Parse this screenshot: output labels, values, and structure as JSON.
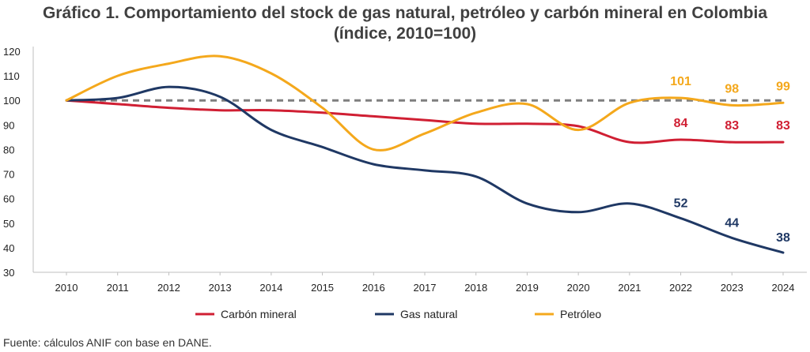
{
  "chart_data": {
    "type": "line",
    "title": "Gráfico 1. Comportamiento del stock de gas natural, petróleo y carbón mineral en Colombia",
    "subtitle": "(índice, 2010=100)",
    "xlabel": "",
    "ylabel": "",
    "x": [
      "2010",
      "2011",
      "2012",
      "2013",
      "2014",
      "2015",
      "2016",
      "2017",
      "2018",
      "2019",
      "2020",
      "2021",
      "2022",
      "2023",
      "2024"
    ],
    "ylim": [
      30,
      120
    ],
    "yticks": [
      "30",
      "40",
      "50",
      "60",
      "70",
      "80",
      "90",
      "100",
      "110",
      "120"
    ],
    "grid": false,
    "legend_position": "bottom",
    "reference_line": {
      "value": 100,
      "style": "dashed",
      "color": "#7f7f7f"
    },
    "series": [
      {
        "name": "Carbón mineral",
        "color": "#d01f33",
        "values": [
          100,
          98.5,
          97,
          96,
          96,
          95,
          93.5,
          92,
          90.5,
          90.5,
          89.5,
          83,
          84,
          83,
          83
        ]
      },
      {
        "name": "Gas natural",
        "color": "#1f3864",
        "values": [
          100,
          101,
          105.5,
          101.5,
          88,
          81,
          74,
          71.5,
          69,
          58,
          54.5,
          58,
          52,
          44,
          38
        ]
      },
      {
        "name": "Petróleo",
        "color": "#f4a81c",
        "values": [
          100,
          110,
          115,
          118,
          111,
          97,
          80,
          86.5,
          95,
          98.5,
          88,
          99,
          101,
          98,
          99
        ]
      }
    ],
    "annotations": [
      {
        "series": "Carbón mineral",
        "x": "2022",
        "text": "84"
      },
      {
        "series": "Carbón mineral",
        "x": "2023",
        "text": "83"
      },
      {
        "series": "Carbón mineral",
        "x": "2024",
        "text": "83"
      },
      {
        "series": "Gas natural",
        "x": "2022",
        "text": "52"
      },
      {
        "series": "Gas natural",
        "x": "2023",
        "text": "44"
      },
      {
        "series": "Gas natural",
        "x": "2024",
        "text": "38"
      },
      {
        "series": "Petróleo",
        "x": "2022",
        "text": "101"
      },
      {
        "series": "Petróleo",
        "x": "2023",
        "text": "98"
      },
      {
        "series": "Petróleo",
        "x": "2024",
        "text": "99"
      }
    ]
  },
  "source": "Fuente: cálculos ANIF con base en DANE."
}
